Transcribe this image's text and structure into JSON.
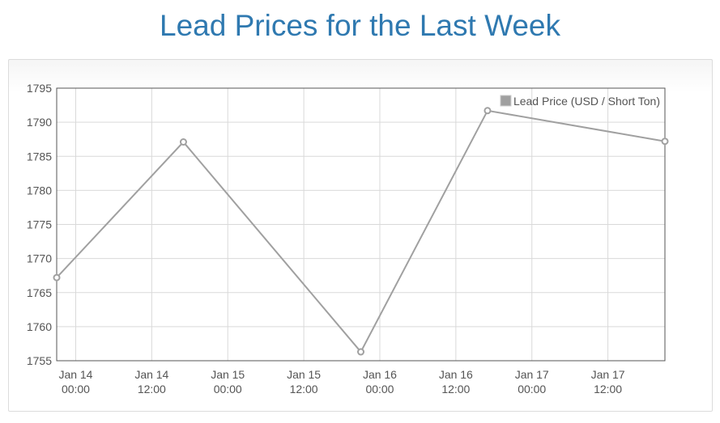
{
  "page": {
    "title": "Lead Prices for the Last Week"
  },
  "chart_data": {
    "type": "line",
    "title": "Lead Prices for the Last Week",
    "xlabel": "",
    "ylabel": "",
    "ylim": [
      1755,
      1795
    ],
    "yticks": [
      1755,
      1760,
      1765,
      1770,
      1775,
      1780,
      1785,
      1790,
      1795
    ],
    "xlim": [
      "2021-01-13T21:00",
      "2021-01-17T21:00"
    ],
    "xticks": [
      {
        "t": "2021-01-14T00:00",
        "line1": "Jan 14",
        "line2": "00:00"
      },
      {
        "t": "2021-01-14T12:00",
        "line1": "Jan 14",
        "line2": "12:00"
      },
      {
        "t": "2021-01-15T00:00",
        "line1": "Jan 15",
        "line2": "00:00"
      },
      {
        "t": "2021-01-15T12:00",
        "line1": "Jan 15",
        "line2": "12:00"
      },
      {
        "t": "2021-01-16T00:00",
        "line1": "Jan 16",
        "line2": "00:00"
      },
      {
        "t": "2021-01-16T12:00",
        "line1": "Jan 16",
        "line2": "12:00"
      },
      {
        "t": "2021-01-17T00:00",
        "line1": "Jan 17",
        "line2": "00:00"
      },
      {
        "t": "2021-01-17T12:00",
        "line1": "Jan 17",
        "line2": "12:00"
      }
    ],
    "grid": true,
    "legend_position": "top-right",
    "series": [
      {
        "name": "Lead Price (USD / Short Ton)",
        "color": "#a0a0a0",
        "points": [
          {
            "x": "2021-01-13T21:00",
            "y": 1767.2
          },
          {
            "x": "2021-01-14T17:00",
            "y": 1787.1
          },
          {
            "x": "2021-01-15T21:00",
            "y": 1756.3
          },
          {
            "x": "2021-01-16T17:00",
            "y": 1791.7
          },
          {
            "x": "2021-01-17T21:00",
            "y": 1787.2
          }
        ]
      }
    ]
  }
}
